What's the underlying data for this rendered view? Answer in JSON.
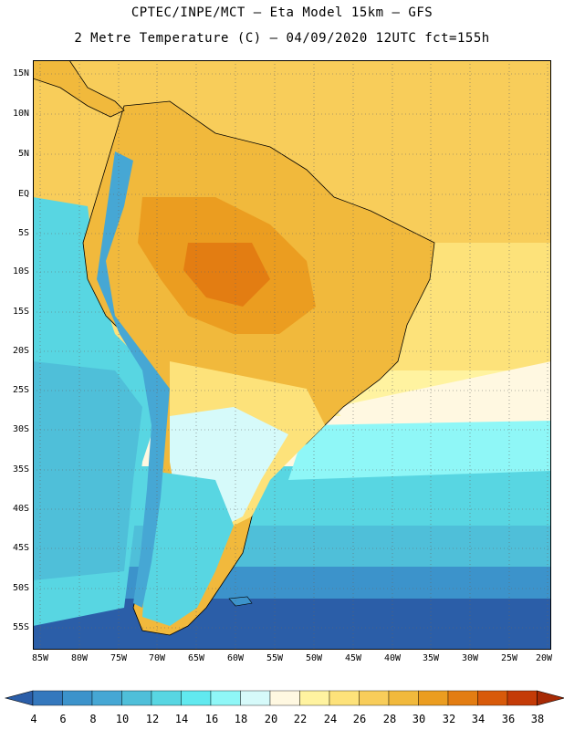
{
  "header": {
    "line1": "CPTEC/INPE/MCT –  Eta Model 15km – GFS",
    "line2": "2 Metre Temperature (C) – 04/09/2020 12UTC fct=155h"
  },
  "lat_labels": [
    "15N",
    "10N",
    "5N",
    "EQ",
    "5S",
    "10S",
    "15S",
    "20S",
    "25S",
    "30S",
    "35S",
    "40S",
    "45S",
    "50S",
    "55S"
  ],
  "lon_labels": [
    "85W",
    "80W",
    "75W",
    "70W",
    "65W",
    "60W",
    "55W",
    "50W",
    "45W",
    "40W",
    "35W",
    "30W",
    "25W",
    "20W"
  ],
  "colorbar": {
    "labels": [
      "4",
      "6",
      "8",
      "10",
      "12",
      "14",
      "16",
      "18",
      "20",
      "22",
      "24",
      "26",
      "28",
      "30",
      "32",
      "34",
      "36",
      "38"
    ],
    "colors": [
      "#2b5ea8",
      "#3478bd",
      "#3c93cb",
      "#46a7d4",
      "#4fbfd9",
      "#58d6e2",
      "#61e9ef",
      "#8ff7f7",
      "#d6fafa",
      "#fff8e1",
      "#fff3a0",
      "#fde27a",
      "#f8cd5a",
      "#f1b93c",
      "#eb9d20",
      "#e37d12",
      "#d85a0a",
      "#c43b07",
      "#a72a05"
    ]
  },
  "palette": {
    "sea_deep": "#2b5ea8",
    "sea_mid": "#3c93cb",
    "sea_light": "#4fbfd9",
    "sea_cyan": "#58d6e2",
    "sea_pale": "#fff8e1",
    "sea_warm": "#fde27a",
    "land_hot": "#f1b93c",
    "land_hotter": "#eb9d20",
    "land_core": "#e37d12",
    "land_cool": "#fde27a"
  }
}
